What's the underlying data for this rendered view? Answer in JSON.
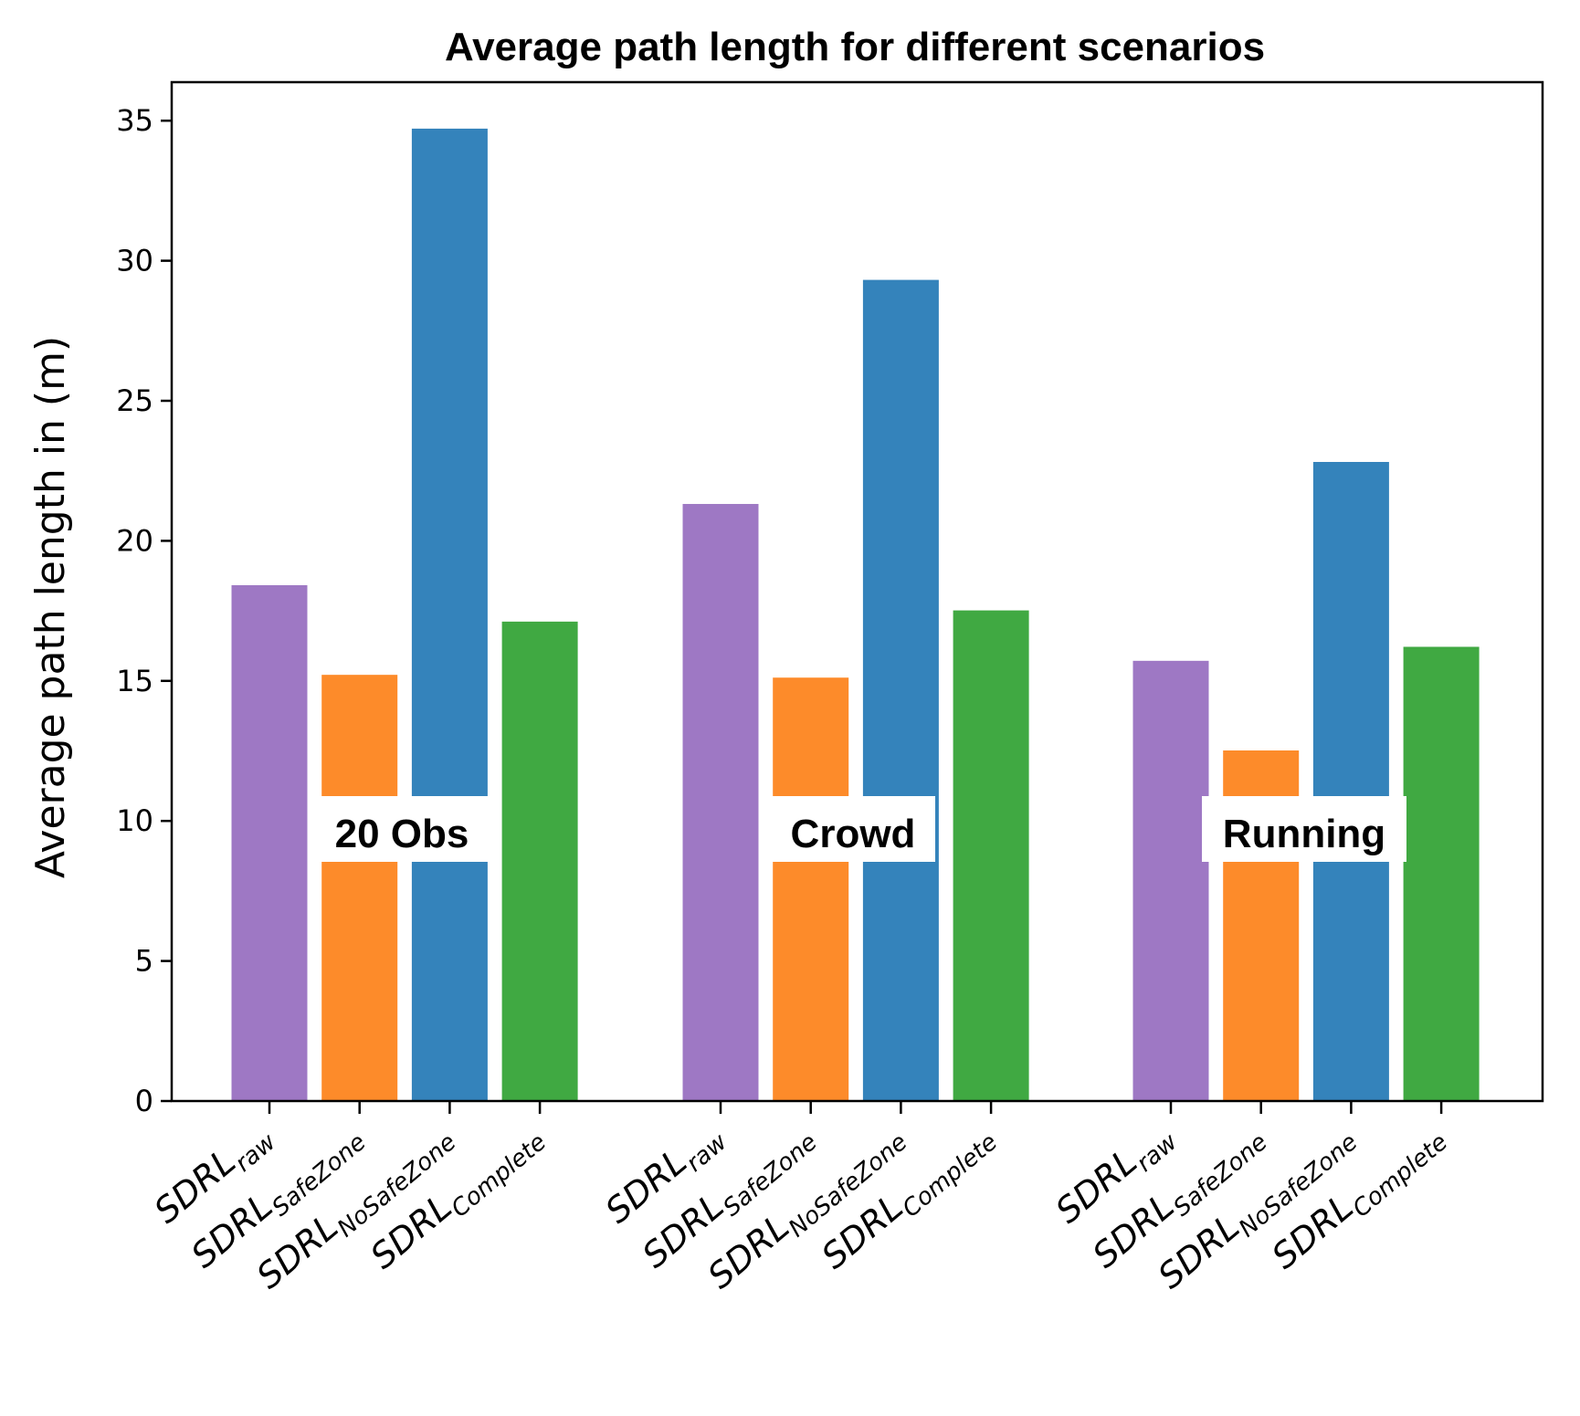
{
  "chart_data": {
    "type": "bar",
    "title": "Average path length for different scenarios",
    "xlabel": "",
    "ylabel": "Average path length in (m)",
    "ylim": [
      0,
      36.5
    ],
    "yticks": [
      0,
      5,
      10,
      15,
      20,
      25,
      30,
      35
    ],
    "groups": [
      "20 Obs",
      "Crowd",
      "Running"
    ],
    "series": [
      {
        "name": "SDRL",
        "subscript": "raw",
        "color": "#9e78c4",
        "values": [
          18.4,
          21.3,
          15.7
        ]
      },
      {
        "name": "SDRL",
        "subscript": "SafeZone",
        "color": "#fd8b2a",
        "values": [
          15.2,
          15.1,
          12.5
        ]
      },
      {
        "name": "SDRL",
        "subscript": "NoSafeZone",
        "color": "#3483bb",
        "values": [
          34.7,
          29.3,
          22.8
        ]
      },
      {
        "name": "SDRL",
        "subscript": "Complete",
        "color": "#40a942",
        "values": [
          17.1,
          17.5,
          16.2
        ]
      }
    ],
    "grid": false,
    "legend": "none"
  }
}
